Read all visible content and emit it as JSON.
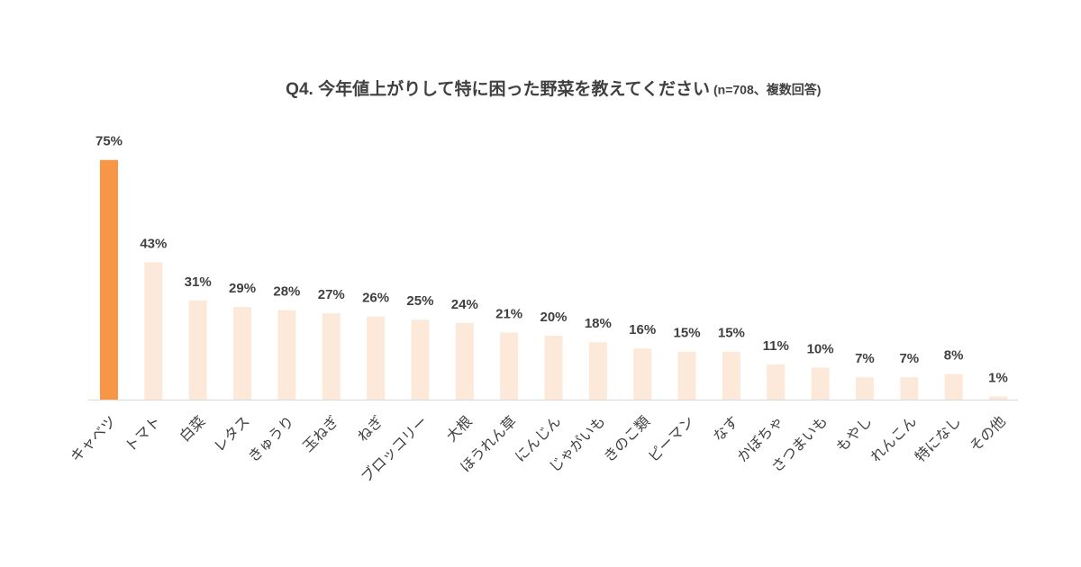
{
  "chart_data": {
    "type": "bar",
    "title": "Q4. 今年値上がりして特に困った野菜を教えてください",
    "subtitle": "(n=708、複数回答)",
    "categories": [
      "キャベツ",
      "トマト",
      "白菜",
      "レタス",
      "きゅうり",
      "玉ねぎ",
      "ねぎ",
      "ブロッコリー",
      "大根",
      "ほうれん草",
      "にんじん",
      "じゃがいも",
      "きのこ類",
      "ピーマン",
      "なす",
      "かぼちゃ",
      "さつまいも",
      "もやし",
      "れんこん",
      "特になし",
      "その他"
    ],
    "values": [
      75,
      43,
      31,
      29,
      28,
      27,
      26,
      25,
      24,
      21,
      20,
      18,
      16,
      15,
      15,
      11,
      10,
      7,
      7,
      8,
      1
    ],
    "value_labels": [
      "75%",
      "43%",
      "31%",
      "29%",
      "28%",
      "27%",
      "26%",
      "25%",
      "24%",
      "21%",
      "20%",
      "18%",
      "16%",
      "15%",
      "15%",
      "11%",
      "10%",
      "7%",
      "7%",
      "8%",
      "1%"
    ],
    "colors": [
      "#f79646",
      "#fde9d9",
      "#fde9d9",
      "#fde9d9",
      "#fde9d9",
      "#fde9d9",
      "#fde9d9",
      "#fde9d9",
      "#fde9d9",
      "#fde9d9",
      "#fde9d9",
      "#fde9d9",
      "#fde9d9",
      "#fde9d9",
      "#fde9d9",
      "#fde9d9",
      "#fde9d9",
      "#fde9d9",
      "#fde9d9",
      "#fde9d9",
      "#fde9d9"
    ]
  }
}
